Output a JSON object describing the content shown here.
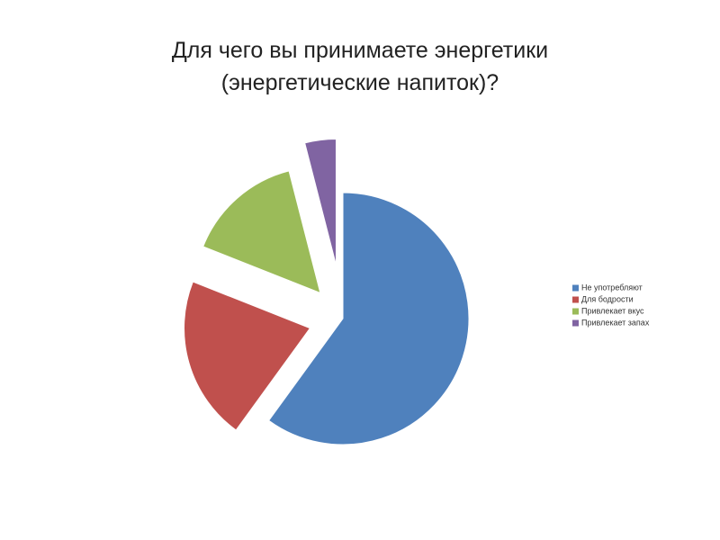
{
  "chart_data": {
    "type": "pie",
    "title": "Для чего вы принимаете энергетики (энергетические напиток)?",
    "categories": [
      "Не употребляют",
      "Для бодрости",
      "Привлекает вкус",
      "Привлекает запах"
    ],
    "values": [
      60,
      21,
      15,
      4
    ],
    "colors": [
      "#4f81bd",
      "#c0504d",
      "#9bbb59",
      "#8064a2"
    ],
    "legend": "right"
  }
}
